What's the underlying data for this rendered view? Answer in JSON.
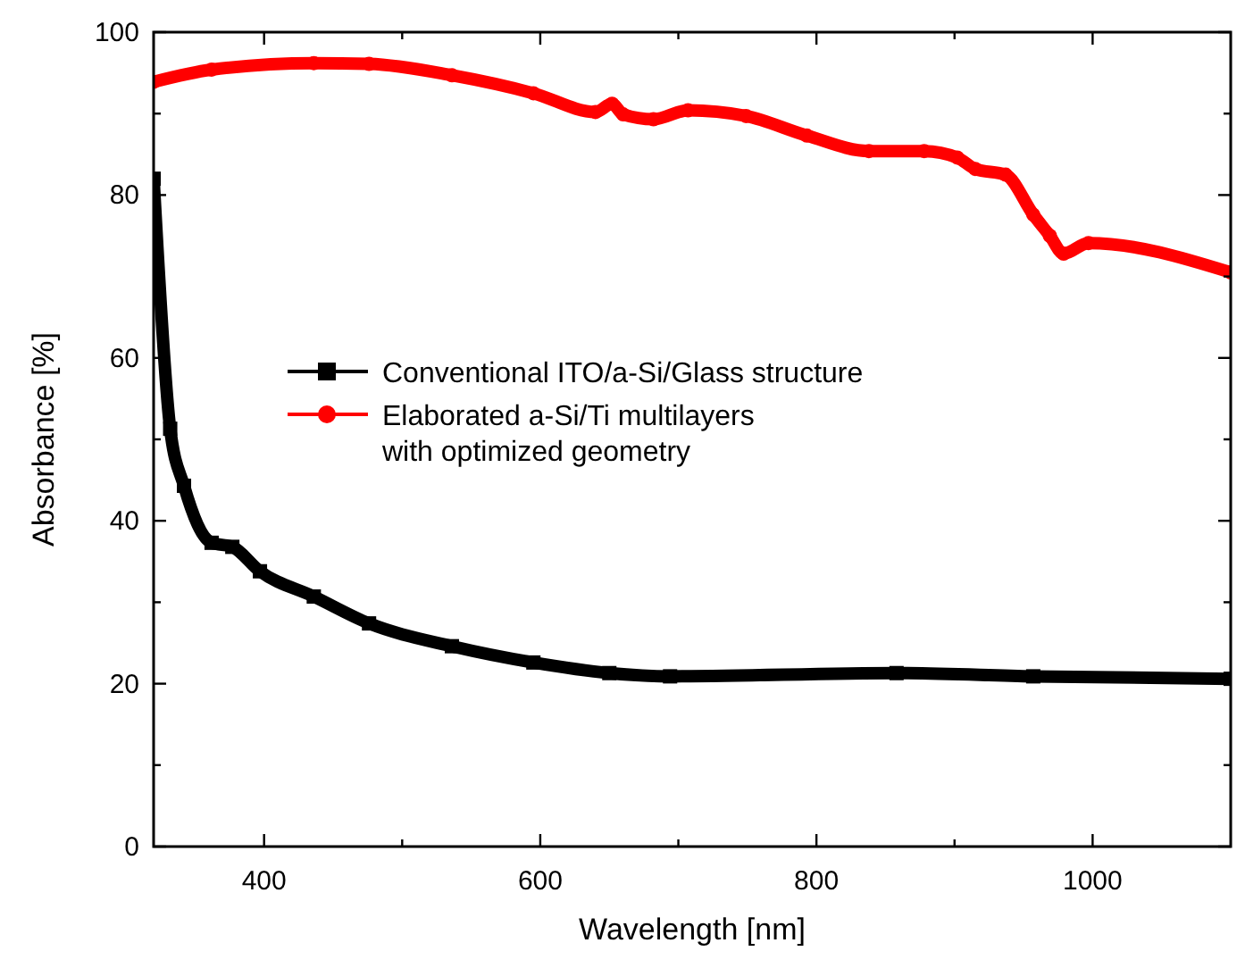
{
  "chart_data": {
    "type": "line",
    "xlabel": "Wavelength [nm]",
    "ylabel": "Absorbance [%]",
    "xlim": [
      320,
      1100
    ],
    "ylim": [
      0,
      100
    ],
    "xticks": [
      400,
      {
        "value": 500,
        "label": null
      },
      600,
      {
        "value": 700,
        "label": null
      },
      800,
      {
        "value": 900,
        "label": null
      },
      1000
    ],
    "yticks": [
      0,
      {
        "value": 10,
        "label": null
      },
      20,
      {
        "value": 30,
        "label": null
      },
      40,
      {
        "value": 50,
        "label": null
      },
      60,
      {
        "value": 70,
        "label": null
      },
      80,
      {
        "value": 90,
        "label": null
      },
      100
    ],
    "grid": false,
    "legend": "center left",
    "line_style": "solid",
    "series": [
      {
        "name": "Conventional ITO/a-Si/Glass structure",
        "color": "#000000",
        "marker": "square",
        "x": [
          320,
          332,
          342,
          362,
          377,
          397,
          436,
          476,
          536,
          595,
          650,
          694,
          858,
          957,
          1100
        ],
        "values": [
          82,
          51.3,
          44.3,
          37.3,
          36.8,
          33.8,
          30.7,
          27.4,
          24.6,
          22.6,
          21.3,
          20.9,
          21.3,
          20.9,
          20.6
        ]
      },
      {
        "name": "Elaborated a-Si/Ti multilayers\nwith optimized geometry",
        "color": "#ff0000",
        "marker": "circle",
        "x": [
          320,
          362,
          436,
          476,
          536,
          595,
          640,
          652,
          660,
          682,
          707,
          749,
          793,
          838,
          878,
          902,
          915,
          937,
          957,
          969,
          979,
          997,
          1100
        ],
        "values": [
          93.9,
          95.4,
          96.2,
          96.1,
          94.7,
          92.5,
          90.2,
          91.2,
          89.9,
          89.3,
          90.4,
          89.7,
          87.3,
          85.4,
          85.4,
          84.6,
          83.2,
          82.5,
          77.6,
          75.0,
          72.8,
          74.1,
          70.5
        ]
      }
    ]
  }
}
